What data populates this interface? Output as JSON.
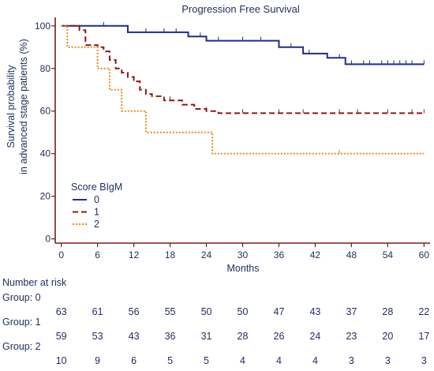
{
  "chart_data": {
    "type": "line",
    "title": "Progression Free Survival",
    "xlabel": "Months",
    "ylabel_lines": [
      "Survival probability",
      "in advanced stage patients (%)"
    ],
    "xlim": [
      -1,
      61
    ],
    "ylim": [
      -2,
      104
    ],
    "x_ticks": [
      0,
      6,
      12,
      18,
      24,
      30,
      36,
      42,
      48,
      54,
      60
    ],
    "y_ticks": [
      0,
      20,
      40,
      60,
      80,
      100
    ],
    "axis_color": "#7a1a1a",
    "legend": {
      "title": "Score BIgM",
      "placement": "lower-left",
      "entries": [
        "0",
        "1",
        "2"
      ]
    },
    "series": [
      {
        "name": "0",
        "color": "#1f2d86",
        "dash": "solid",
        "steps": [
          [
            0,
            100
          ],
          [
            11,
            97
          ],
          [
            21,
            95
          ],
          [
            24,
            93
          ],
          [
            36,
            90
          ],
          [
            40,
            87
          ],
          [
            44,
            85
          ],
          [
            47,
            82
          ],
          [
            60,
            82
          ]
        ],
        "censors": [
          [
            7,
            100
          ],
          [
            14,
            97
          ],
          [
            17,
            97
          ],
          [
            19,
            97
          ],
          [
            23,
            95
          ],
          [
            26,
            93
          ],
          [
            30,
            93
          ],
          [
            33,
            93
          ],
          [
            38,
            90
          ],
          [
            41,
            87
          ],
          [
            46,
            85
          ],
          [
            48,
            82
          ],
          [
            50,
            82
          ],
          [
            51,
            82
          ],
          [
            53,
            82
          ],
          [
            54,
            82
          ],
          [
            55,
            82
          ],
          [
            56,
            82
          ],
          [
            57,
            82
          ],
          [
            58,
            82
          ],
          [
            60,
            82
          ]
        ]
      },
      {
        "name": "1",
        "color": "#8b1a1a",
        "dash": "dashed",
        "steps": [
          [
            0,
            100
          ],
          [
            3,
            98
          ],
          [
            4,
            91
          ],
          [
            6,
            90
          ],
          [
            7,
            88
          ],
          [
            8,
            84
          ],
          [
            9,
            80
          ],
          [
            10,
            78
          ],
          [
            11,
            76
          ],
          [
            12,
            74
          ],
          [
            13,
            70
          ],
          [
            14,
            68
          ],
          [
            15,
            67
          ],
          [
            17,
            65
          ],
          [
            20,
            63
          ],
          [
            22,
            61
          ],
          [
            24,
            60
          ],
          [
            26,
            59
          ],
          [
            60,
            59
          ]
        ],
        "censors": [
          [
            8,
            84
          ],
          [
            12,
            74
          ],
          [
            18,
            65
          ],
          [
            24,
            60
          ],
          [
            30,
            59
          ],
          [
            36,
            59
          ],
          [
            40,
            59
          ],
          [
            46,
            59
          ],
          [
            49,
            59
          ],
          [
            54,
            59
          ],
          [
            58,
            59
          ],
          [
            60,
            59
          ]
        ]
      },
      {
        "name": "2",
        "color": "#e58a1f",
        "dash": "dotted",
        "steps": [
          [
            0,
            100
          ],
          [
            1,
            90
          ],
          [
            5,
            90
          ],
          [
            6,
            80
          ],
          [
            8,
            70
          ],
          [
            10,
            60
          ],
          [
            14,
            50
          ],
          [
            25,
            40
          ],
          [
            60,
            40
          ]
        ],
        "censors": [
          [
            46,
            40
          ]
        ]
      }
    ],
    "risk_table": {
      "title": "Number at risk",
      "x": [
        0,
        6,
        12,
        18,
        24,
        30,
        36,
        42,
        48,
        54,
        60
      ],
      "groups": [
        {
          "label": "Group: 0",
          "values": [
            "63",
            "61",
            "56",
            "55",
            "50",
            "50",
            "47",
            "43",
            "37",
            "28",
            "22"
          ]
        },
        {
          "label": "Group: 1",
          "values": [
            "59",
            "53",
            "43",
            "36",
            "31",
            "28",
            "26",
            "24",
            "23",
            "20",
            "17"
          ]
        },
        {
          "label": "Group: 2",
          "values": [
            "10",
            "9",
            "6",
            "5",
            "5",
            "4",
            "4",
            "4",
            "3",
            "3",
            "3"
          ]
        }
      ]
    }
  }
}
